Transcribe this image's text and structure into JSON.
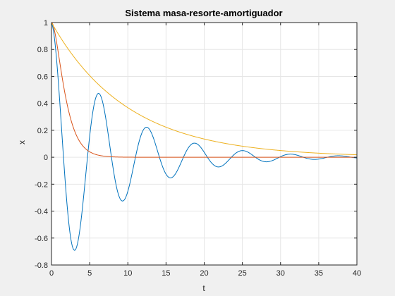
{
  "chart_data": {
    "type": "line",
    "title": "Sistema masa-resorte-amortiguador",
    "xlabel": "t",
    "ylabel": "x",
    "xlim": [
      0,
      40
    ],
    "ylim": [
      -0.8,
      1
    ],
    "xticks": [
      0,
      5,
      10,
      15,
      20,
      25,
      30,
      35,
      40
    ],
    "yticks": [
      -0.8,
      -0.6,
      -0.4,
      -0.2,
      0,
      0.2,
      0.4,
      0.6,
      0.8,
      1
    ],
    "grid": true,
    "legend": "none",
    "series": [
      {
        "kind": "underdamped",
        "color": "#0072BD",
        "x0": 1,
        "decay": 0.12,
        "omega": 1.0,
        "xmax": 40
      },
      {
        "kind": "critical",
        "color": "#D95319",
        "x0": 1,
        "rate": 1.0,
        "xmax": 40
      },
      {
        "kind": "overdamped",
        "color": "#EDB120",
        "x0": 1,
        "rate": 0.1,
        "xmax": 40
      }
    ]
  },
  "colors": {
    "axes_background": "#ffffff",
    "figure_background": "#f0f0f0",
    "grid": "#e6e6e6",
    "axis": "#262626"
  }
}
